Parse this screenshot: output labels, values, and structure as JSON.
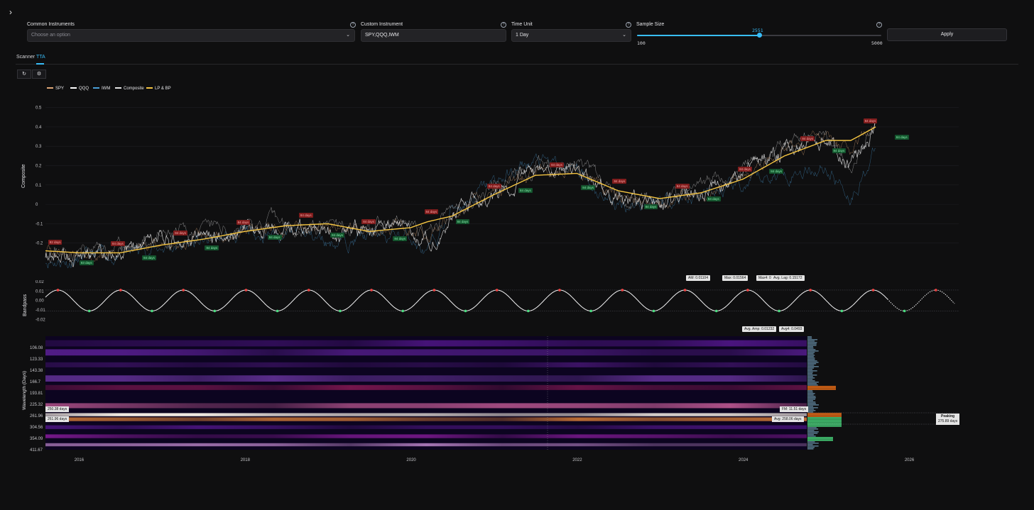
{
  "toolbar": {
    "toggle_icon": "chevron-right-icon"
  },
  "controls": {
    "common": {
      "label": "Common Instruments",
      "placeholder": "Choose an option"
    },
    "custom": {
      "label": "Custom Instrument",
      "value": "SPY,QQQ,IWM"
    },
    "time_unit": {
      "label": "Time Unit",
      "value": "1 Day"
    },
    "sample": {
      "label": "Sample Size",
      "value": "2551",
      "min": "100",
      "max": "5000",
      "fraction": 0.5
    },
    "apply": "Apply"
  },
  "tabs": [
    {
      "label": "Scanner"
    },
    {
      "label": "TTA"
    }
  ],
  "tools": {
    "refresh_icon": "refresh-icon",
    "settings_icon": "gear-icon"
  },
  "colors": {
    "spy": "#e0a878",
    "qqq": "#ffffff",
    "iwm": "#4a9fd8",
    "composite": "#e5e5e5",
    "lpbp": "#f5c542",
    "accent": "#38bdf8",
    "peak": "#ef4444",
    "trough": "#4ade80"
  },
  "legend": [
    {
      "label": "SPY"
    },
    {
      "label": "QQQ"
    },
    {
      "label": "IWM"
    },
    {
      "label": "Composite"
    },
    {
      "label": "LP & BP"
    }
  ],
  "chart_data": [
    {
      "type": "line",
      "ylabel": "Composite",
      "ylim": [
        -0.3,
        0.55
      ],
      "yticks": [
        "0.5",
        "0.4",
        "0.3",
        "0.2",
        "0.1",
        "0",
        "-0.1",
        "-0.2"
      ],
      "x": [
        2015.6,
        2016.0,
        2016.5,
        2017.0,
        2017.5,
        2018.0,
        2018.5,
        2019.0,
        2019.5,
        2020.0,
        2020.2,
        2020.5,
        2021.0,
        2021.5,
        2022.0,
        2022.5,
        2023.0,
        2023.5,
        2024.0,
        2024.5,
        2025.0,
        2025.3,
        2025.6
      ],
      "series": [
        {
          "name": "LP & BP",
          "values": [
            -0.24,
            -0.25,
            -0.25,
            -0.21,
            -0.18,
            -0.14,
            -0.11,
            -0.1,
            -0.14,
            -0.12,
            -0.09,
            -0.06,
            0.05,
            0.15,
            0.16,
            0.07,
            0.03,
            0.06,
            0.13,
            0.25,
            0.33,
            0.33,
            0.4
          ]
        },
        {
          "name": "Composite",
          "values": [
            -0.25,
            -0.26,
            -0.25,
            -0.2,
            -0.17,
            -0.13,
            -0.12,
            -0.15,
            -0.13,
            -0.12,
            -0.2,
            -0.05,
            0.07,
            0.17,
            0.18,
            0.02,
            0.01,
            0.08,
            0.15,
            0.28,
            0.35,
            0.2,
            0.42
          ]
        },
        {
          "name": "IWM",
          "values": [
            -0.28,
            -0.29,
            -0.26,
            -0.22,
            -0.2,
            -0.16,
            -0.14,
            -0.19,
            -0.17,
            -0.16,
            -0.28,
            -0.02,
            0.11,
            0.22,
            0.17,
            -0.01,
            0.03,
            0.04,
            0.08,
            0.17,
            0.2,
            0.05,
            0.28
          ]
        }
      ],
      "xticks": [
        "2016",
        "2018",
        "2020",
        "2022",
        "2024",
        "2026"
      ]
    },
    {
      "type": "line",
      "ylabel": "Bandpass",
      "ylim": [
        -0.025,
        0.02
      ],
      "yticks": [
        "0.02",
        "0.01",
        "0.00",
        "-0.01",
        "-0.02"
      ],
      "amplitude": 0.01104,
      "cycle_days": 275.89,
      "stats_top": [
        "AM: 0.01104",
        "Max: 0.01564",
        "Max4: 0.06257",
        "Avg. Lag: 0.15172"
      ],
      "stats_bottom": [
        "Avg. Amp: 0.01232",
        "Avg4: 0.0493"
      ]
    },
    {
      "type": "heatmap",
      "ylabel": "Wavelength (Days)",
      "yticks": [
        "106.08",
        "123.33",
        "143.38",
        "166.7",
        "193.81",
        "225.32",
        "261.96",
        "304.56",
        "354.09",
        "411.67"
      ],
      "xticks": [
        "2016",
        "2018",
        "2020",
        "2022",
        "2024",
        "2026"
      ],
      "markers": [
        "250.38 days",
        "261.96 days"
      ],
      "fm_label": "FM: 11.51 days",
      "avg_label": "Avg: 258.06 days",
      "peaking_title": "Peaking",
      "peaking_value": "275.89 days"
    }
  ],
  "cycle_tags": {
    "red": "84 days",
    "green": "84 days",
    "red_first": "82 days",
    "green_first": "83 days"
  }
}
